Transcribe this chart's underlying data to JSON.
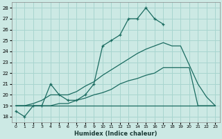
{
  "xlabel": "Humidex (Indice chaleur)",
  "xlim": [
    -0.5,
    23.5
  ],
  "ylim": [
    17.5,
    28.5
  ],
  "yticks": [
    18,
    19,
    20,
    21,
    22,
    23,
    24,
    25,
    26,
    27,
    28
  ],
  "xticks": [
    0,
    1,
    2,
    3,
    4,
    5,
    6,
    7,
    8,
    9,
    10,
    11,
    12,
    13,
    14,
    15,
    16,
    17,
    18,
    19,
    20,
    21,
    22,
    23
  ],
  "bg_color": "#cce9e4",
  "grid_color": "#a8d5cf",
  "line_color": "#1a6b60",
  "line1_x": [
    0,
    1,
    2,
    3,
    4,
    5,
    6,
    7,
    8,
    9,
    10,
    11,
    12,
    13,
    14,
    15,
    16,
    17
  ],
  "line1_y": [
    18.5,
    18.0,
    19.0,
    19.0,
    21.0,
    20.0,
    19.5,
    19.5,
    20.0,
    21.0,
    24.5,
    25.0,
    25.5,
    27.0,
    27.0,
    28.0,
    27.0,
    26.5
  ],
  "line2_x": [
    0,
    1,
    2,
    3,
    4,
    5,
    6,
    7,
    8,
    9,
    10,
    11,
    12,
    13,
    14,
    15,
    16,
    17,
    18,
    19,
    21,
    22,
    23
  ],
  "line2_y": [
    19.0,
    19.0,
    19.2,
    19.5,
    20.0,
    20.0,
    20.0,
    20.3,
    20.8,
    21.2,
    21.8,
    22.3,
    22.8,
    23.3,
    23.8,
    24.2,
    24.5,
    24.8,
    24.5,
    24.5,
    21.0,
    19.8,
    19.0
  ],
  "line3_x": [
    0,
    1,
    2,
    3,
    4,
    5,
    6,
    7,
    8,
    9,
    10,
    11,
    12,
    13,
    14,
    15,
    16,
    17,
    18,
    19,
    20,
    21,
    22,
    23
  ],
  "line3_y": [
    19.0,
    19.0,
    19.0,
    19.0,
    19.0,
    19.2,
    19.2,
    19.5,
    19.7,
    20.0,
    20.2,
    20.5,
    21.0,
    21.3,
    21.5,
    21.8,
    22.0,
    22.5,
    22.5,
    22.5,
    22.5,
    19.0,
    19.0,
    19.0
  ],
  "line4_x": [
    0,
    1,
    2,
    3,
    4,
    5,
    6,
    7,
    8,
    9,
    10,
    11,
    12,
    13,
    14,
    15,
    16,
    17,
    18,
    19,
    20,
    21,
    22,
    23
  ],
  "line4_y": [
    19.0,
    19.0,
    19.0,
    19.0,
    19.0,
    19.0,
    19.0,
    19.0,
    19.0,
    19.0,
    19.0,
    19.0,
    19.0,
    19.0,
    19.0,
    19.0,
    19.0,
    19.0,
    19.0,
    19.0,
    19.0,
    19.0,
    19.0,
    19.0
  ]
}
